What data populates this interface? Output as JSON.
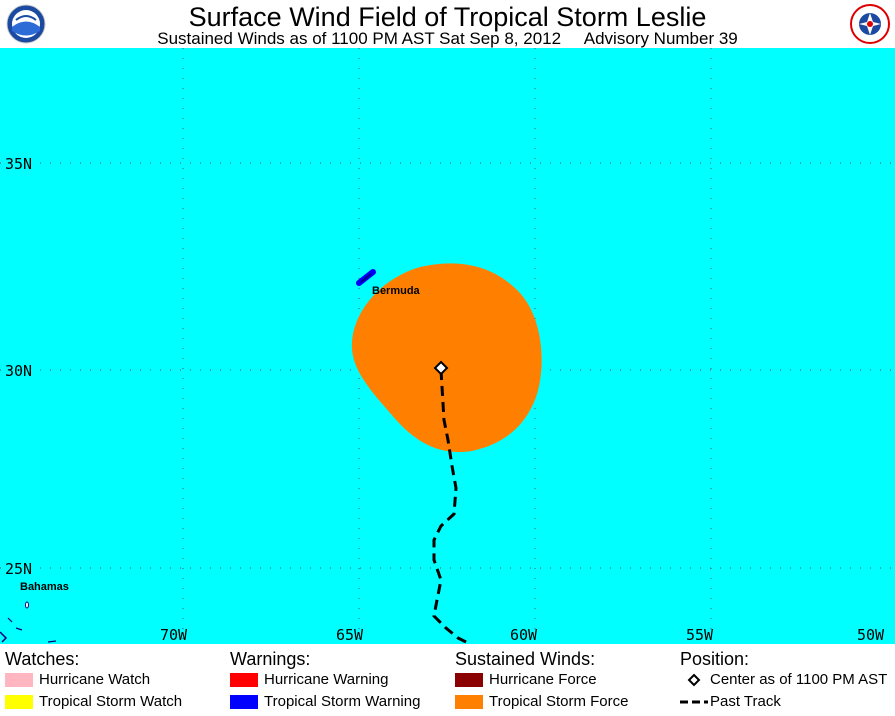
{
  "header": {
    "title": "Surface Wind Field of Tropical Storm Leslie",
    "subtitle": "Sustained Winds as of 1100 PM AST Sat Sep 8, 2012     Advisory Number 39",
    "left_logo": "NOAA",
    "right_logo": "NATIONAL WEATHER SERVICE"
  },
  "map": {
    "ocean_color": "#00ffff",
    "lat_labels": [
      "35N",
      "30N",
      "25N"
    ],
    "lon_labels": [
      "70W",
      "65W",
      "60W",
      "55W",
      "50W"
    ],
    "places": {
      "bermuda": "Bermuda",
      "bahamas": "Bahamas"
    },
    "colors": {
      "tropical_storm_force": "#ff8000",
      "tropical_storm_warning": "#0000ff",
      "track": "#000000"
    }
  },
  "legend": {
    "watches": {
      "heading": "Watches:",
      "items": [
        {
          "label": "Hurricane Watch",
          "color": "#ffb6c1"
        },
        {
          "label": "Tropical Storm Watch",
          "color": "#ffff00"
        }
      ]
    },
    "warnings": {
      "heading": "Warnings:",
      "items": [
        {
          "label": "Hurricane Warning",
          "color": "#ff0000"
        },
        {
          "label": "Tropical Storm Warning",
          "color": "#0000ff"
        }
      ]
    },
    "winds": {
      "heading": "Sustained Winds:",
      "items": [
        {
          "label": "Hurricane Force",
          "color": "#8b0000"
        },
        {
          "label": "Tropical Storm Force",
          "color": "#ff8000"
        }
      ]
    },
    "position": {
      "heading": "Position:",
      "items": [
        {
          "label": "Center as of 1100 PM AST",
          "icon": "diamond-icon"
        },
        {
          "label": "Past Track",
          "icon": "dashed-line-icon"
        }
      ]
    }
  }
}
